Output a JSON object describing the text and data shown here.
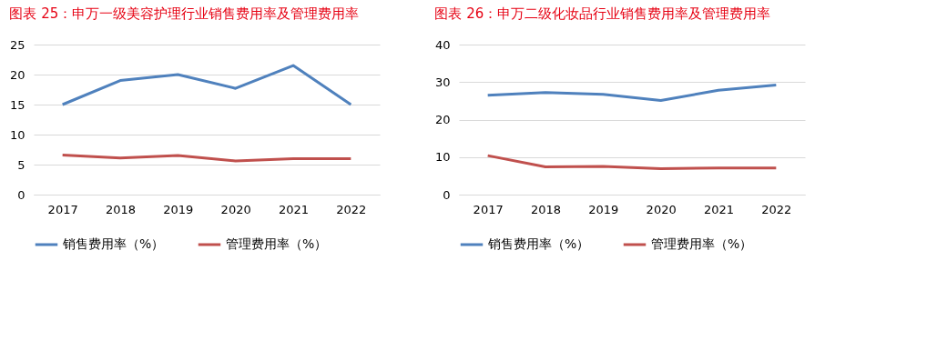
{
  "chart_data": [
    {
      "type": "line",
      "title": "图表 25：申万一级美容护理行业销售费用率及管理费用率",
      "categories": [
        "2017",
        "2018",
        "2019",
        "2020",
        "2021",
        "2022"
      ],
      "ylim": [
        0,
        25
      ],
      "yticks": [
        0,
        5,
        10,
        15,
        20,
        25
      ],
      "grid": "y",
      "legend": "bottom",
      "line_style": "solid",
      "series": [
        {
          "name": "销售费用率（%）",
          "color": "#4f81bd",
          "values": [
            15.0,
            19.0,
            20.0,
            17.7,
            21.5,
            15.0
          ]
        },
        {
          "name": "管理费用率（%）",
          "color": "#c0504d",
          "values": [
            6.6,
            6.1,
            6.5,
            5.6,
            6.0,
            6.0
          ]
        }
      ]
    },
    {
      "type": "line",
      "title": "图表 26：申万二级化妆品行业销售费用率及管理费用率",
      "categories": [
        "2017",
        "2018",
        "2019",
        "2020",
        "2021",
        "2022"
      ],
      "ylim": [
        0,
        40
      ],
      "yticks": [
        0,
        10,
        20,
        30,
        40
      ],
      "grid": "y",
      "legend": "bottom",
      "line_style": "solid",
      "series": [
        {
          "name": "销售费用率（%）",
          "color": "#4f81bd",
          "values": [
            26.5,
            27.2,
            26.7,
            25.1,
            27.8,
            29.2
          ]
        },
        {
          "name": "管理费用率（%）",
          "color": "#c0504d",
          "values": [
            10.4,
            7.4,
            7.5,
            6.9,
            7.1,
            7.1
          ]
        }
      ]
    }
  ]
}
